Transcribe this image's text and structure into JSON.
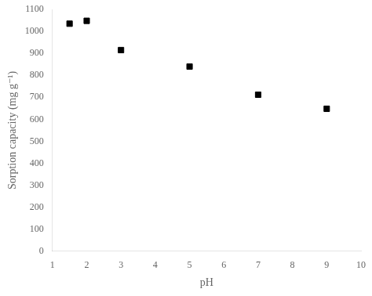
{
  "chart_data": {
    "type": "scatter",
    "x": [
      1.5,
      2.0,
      3.0,
      5.0,
      7.0,
      9.0
    ],
    "y": [
      1035,
      1048,
      915,
      840,
      712,
      648
    ],
    "xlabel": "pH",
    "ylabel": "Sorption capacity (mg g⁻¹)",
    "xlim": [
      1,
      10
    ],
    "ylim": [
      0,
      1100
    ],
    "xticks": [
      1,
      2,
      3,
      4,
      5,
      6,
      7,
      8,
      9,
      10
    ],
    "yticks": [
      0,
      100,
      200,
      300,
      400,
      500,
      600,
      700,
      800,
      900,
      1000,
      1100
    ],
    "marker": "square",
    "color": "black",
    "grid": false
  }
}
